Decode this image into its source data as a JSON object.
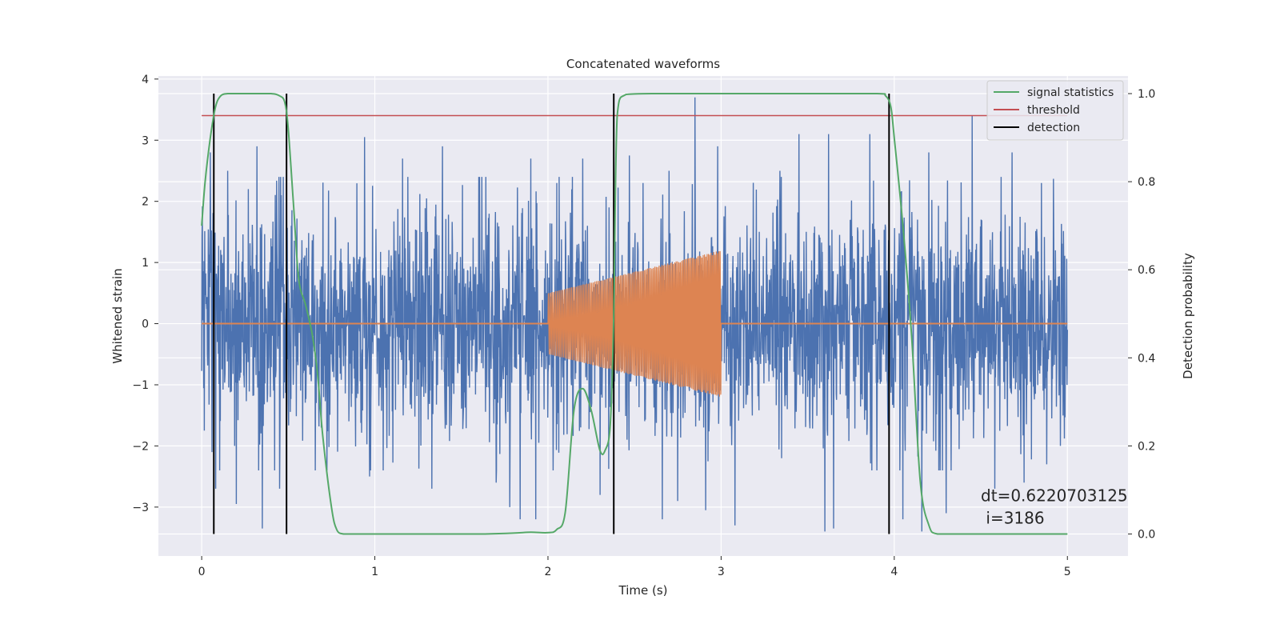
{
  "chart_data": {
    "type": "line",
    "title": "Concatenated waveforms",
    "xlabel": "Time (s)",
    "ylabel": "Whitened strain",
    "ylabel_right": "Detection probability",
    "xlim": [
      -0.25,
      5.35
    ],
    "ylim": [
      -3.8,
      4.05
    ],
    "ylim_right": [
      -0.05,
      1.04
    ],
    "xticks": [
      0,
      1,
      2,
      3,
      4,
      5
    ],
    "yticks": [
      -3,
      -2,
      -1,
      0,
      1,
      2,
      3,
      4
    ],
    "yticks_right": [
      0.0,
      0.2,
      0.4,
      0.6,
      0.8,
      1.0
    ],
    "grid": true,
    "legend_position": "top-right",
    "legend": [
      {
        "label": "signal statistics",
        "color": "#55a868"
      },
      {
        "label": "threshold",
        "color": "#c44e52"
      },
      {
        "label": "detection",
        "color": "#000000"
      }
    ],
    "series": [
      {
        "name": "whitened strain",
        "color": "#4c72b0",
        "axis": "left",
        "description": "noise",
        "x_range": [
          0,
          5
        ],
        "typical_amplitude": 1.2,
        "peak_amplitude": 3.7,
        "peaks": [
          {
            "x": 0.05,
            "y": 2.8
          },
          {
            "x": 0.15,
            "y": 2.5
          },
          {
            "x": 0.2,
            "y": 3.05
          },
          {
            "x": 0.27,
            "y": 2.2
          },
          {
            "x": 0.32,
            "y": 2.9
          },
          {
            "x": 0.46,
            "y": 2.1
          },
          {
            "x": 0.49,
            "y": 2.3
          },
          {
            "x": 0.69,
            "y": 2.1
          },
          {
            "x": 0.94,
            "y": 3.05
          },
          {
            "x": 1.16,
            "y": 2.7
          },
          {
            "x": 1.39,
            "y": 2.9
          },
          {
            "x": 1.7,
            "y": 2.6
          },
          {
            "x": 1.9,
            "y": 2.7
          },
          {
            "x": 2.05,
            "y": 2.3
          },
          {
            "x": 2.2,
            "y": 2.7
          },
          {
            "x": 2.47,
            "y": 2.75
          },
          {
            "x": 2.55,
            "y": 2.3
          },
          {
            "x": 2.7,
            "y": 2.5
          },
          {
            "x": 2.85,
            "y": 3.7
          },
          {
            "x": 2.98,
            "y": 2.9
          },
          {
            "x": 3.34,
            "y": 2.5
          },
          {
            "x": 3.45,
            "y": 3.1
          },
          {
            "x": 3.62,
            "y": 3.1
          },
          {
            "x": 3.86,
            "y": 3.1
          },
          {
            "x": 4.2,
            "y": 2.8
          },
          {
            "x": 4.45,
            "y": 3.4
          },
          {
            "x": 4.68,
            "y": 2.8
          },
          {
            "x": 4.85,
            "y": 2.3
          },
          {
            "x": 0.06,
            "y": -2.1
          },
          {
            "x": 0.08,
            "y": -2.7
          },
          {
            "x": 0.19,
            "y": -2.0
          },
          {
            "x": 0.2,
            "y": -2.95
          },
          {
            "x": 0.35,
            "y": -3.35
          },
          {
            "x": 0.45,
            "y": -2.7
          },
          {
            "x": 0.69,
            "y": -1.7
          },
          {
            "x": 0.97,
            "y": -2.5
          },
          {
            "x": 1.33,
            "y": -2.7
          },
          {
            "x": 1.7,
            "y": -2.6
          },
          {
            "x": 1.78,
            "y": -3.0
          },
          {
            "x": 1.84,
            "y": -3.2
          },
          {
            "x": 1.93,
            "y": -3.2
          },
          {
            "x": 2.3,
            "y": -2.8
          },
          {
            "x": 2.66,
            "y": -3.2
          },
          {
            "x": 2.75,
            "y": -2.9
          },
          {
            "x": 2.91,
            "y": -3.05
          },
          {
            "x": 3.08,
            "y": -3.3
          },
          {
            "x": 3.35,
            "y": -2.2
          },
          {
            "x": 3.6,
            "y": -3.4
          },
          {
            "x": 3.65,
            "y": -3.35
          },
          {
            "x": 4.05,
            "y": -3.2
          },
          {
            "x": 4.16,
            "y": -3.4
          },
          {
            "x": 4.3,
            "y": -3.1
          },
          {
            "x": 4.58,
            "y": -2.7
          },
          {
            "x": 4.75,
            "y": -2.6
          },
          {
            "x": 4.88,
            "y": -2.3
          },
          {
            "x": 4.96,
            "y": -2.0
          }
        ]
      },
      {
        "name": "injected waveform",
        "color": "#dd8452",
        "axis": "left",
        "description": "chirp",
        "baseline": 0,
        "chirp_start": 2.0,
        "chirp_end": 3.0,
        "amplitude_start": 0.5,
        "amplitude_end": 1.2
      },
      {
        "name": "signal statistics",
        "color": "#55a868",
        "axis": "right",
        "x": [
          0.0,
          0.02,
          0.05,
          0.08,
          0.11,
          0.15,
          0.2,
          0.3,
          0.4,
          0.45,
          0.48,
          0.5,
          0.53,
          0.56,
          0.6,
          0.64,
          0.67,
          0.7,
          0.75,
          0.78,
          0.82,
          0.9,
          1.2,
          1.6,
          1.8,
          1.9,
          2.0,
          2.05,
          2.1,
          2.15,
          2.2,
          2.25,
          2.3,
          2.33,
          2.36,
          2.38,
          2.4,
          2.45,
          2.6,
          3.0,
          3.5,
          3.9,
          3.95,
          3.98,
          4.0,
          4.05,
          4.1,
          4.15,
          4.2,
          4.25,
          4.4,
          4.6,
          5.0
        ],
        "y": [
          0.7,
          0.8,
          0.9,
          0.97,
          0.995,
          1.0,
          1.0,
          1.0,
          1.0,
          0.995,
          0.98,
          0.92,
          0.75,
          0.58,
          0.52,
          0.45,
          0.36,
          0.22,
          0.06,
          0.01,
          0.0,
          0.0,
          0.0,
          0.0,
          0.002,
          0.004,
          0.003,
          0.01,
          0.05,
          0.28,
          0.33,
          0.28,
          0.19,
          0.19,
          0.25,
          0.5,
          0.95,
          0.998,
          1.0,
          1.0,
          1.0,
          1.0,
          0.995,
          0.97,
          0.9,
          0.7,
          0.45,
          0.12,
          0.02,
          0.0,
          0.0,
          0.0,
          0.0
        ]
      },
      {
        "name": "threshold",
        "color": "#c44e52",
        "axis": "right",
        "x": [
          0,
          5
        ],
        "y": [
          0.95,
          0.95
        ]
      }
    ],
    "detections": [
      0.07,
      0.49,
      2.38,
      3.97
    ],
    "detections_ylim": [
      0.0,
      1.0
    ],
    "annotation": {
      "line1": "dt=0.6220703125",
      "line2": " i=3186",
      "x": 4.5,
      "y": -2.8
    }
  }
}
